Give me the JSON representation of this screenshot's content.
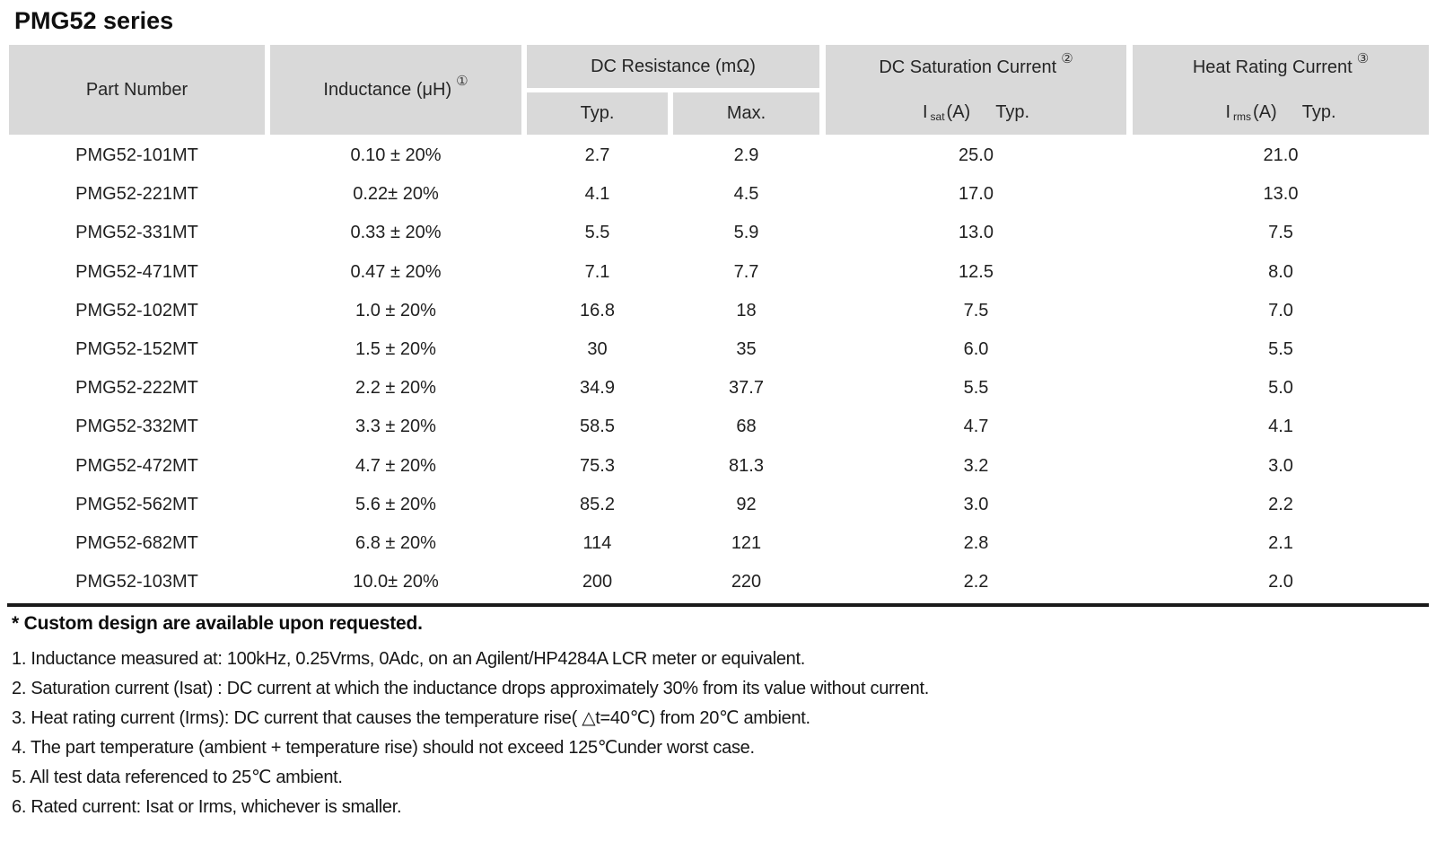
{
  "title": "PMG52 series",
  "colors": {
    "header_bg": "#d9d9d9",
    "rule": "#1a1a1a",
    "text": "#1c1c1c"
  },
  "table": {
    "headers": {
      "part_number": "Part Number",
      "inductance": "Inductance (μH)",
      "inductance_note_ref": "①",
      "dc_resistance": "DC Resistance (mΩ)",
      "typ": "Typ.",
      "max": "Max.",
      "dc_saturation": "DC Saturation Current",
      "dc_saturation_note_ref": "②",
      "isat_symbol": "I",
      "isat_sub": "sat",
      "isat_unit": "(A)",
      "isat_typ": "Typ.",
      "heat_rating": "Heat Rating Current",
      "heat_rating_note_ref": "③",
      "irms_symbol": "I",
      "irms_sub": "rms",
      "irms_unit": "(A)",
      "irms_typ": "Typ."
    },
    "rows": [
      {
        "part": "PMG52-101MT",
        "inductance": "0.10 ± 20%",
        "dcr_typ": "2.7",
        "dcr_max": "2.9",
        "isat": "25.0",
        "irms": "21.0"
      },
      {
        "part": "PMG52-221MT",
        "inductance": "0.22± 20%",
        "dcr_typ": "4.1",
        "dcr_max": "4.5",
        "isat": "17.0",
        "irms": "13.0"
      },
      {
        "part": "PMG52-331MT",
        "inductance": "0.33 ± 20%",
        "dcr_typ": "5.5",
        "dcr_max": "5.9",
        "isat": "13.0",
        "irms": "7.5"
      },
      {
        "part": "PMG52-471MT",
        "inductance": "0.47 ± 20%",
        "dcr_typ": "7.1",
        "dcr_max": "7.7",
        "isat": "12.5",
        "irms": "8.0"
      },
      {
        "part": "PMG52-102MT",
        "inductance": "1.0 ± 20%",
        "dcr_typ": "16.8",
        "dcr_max": "18",
        "isat": "7.5",
        "irms": "7.0"
      },
      {
        "part": "PMG52-152MT",
        "inductance": "1.5 ± 20%",
        "dcr_typ": "30",
        "dcr_max": "35",
        "isat": "6.0",
        "irms": "5.5"
      },
      {
        "part": "PMG52-222MT",
        "inductance": "2.2 ± 20%",
        "dcr_typ": "34.9",
        "dcr_max": "37.7",
        "isat": "5.5",
        "irms": "5.0"
      },
      {
        "part": "PMG52-332MT",
        "inductance": "3.3 ± 20%",
        "dcr_typ": "58.5",
        "dcr_max": "68",
        "isat": "4.7",
        "irms": "4.1"
      },
      {
        "part": "PMG52-472MT",
        "inductance": "4.7 ± 20%",
        "dcr_typ": "75.3",
        "dcr_max": "81.3",
        "isat": "3.2",
        "irms": "3.0"
      },
      {
        "part": "PMG52-562MT",
        "inductance": "5.6 ± 20%",
        "dcr_typ": "85.2",
        "dcr_max": "92",
        "isat": "3.0",
        "irms": "2.2"
      },
      {
        "part": "PMG52-682MT",
        "inductance": "6.8 ± 20%",
        "dcr_typ": "114",
        "dcr_max": "121",
        "isat": "2.8",
        "irms": "2.1"
      },
      {
        "part": "PMG52-103MT",
        "inductance": "10.0± 20%",
        "dcr_typ": "200",
        "dcr_max": "220",
        "isat": "2.2",
        "irms": "2.0"
      }
    ]
  },
  "notes": {
    "custom": "* Custom design are available upon requested.",
    "items": [
      "1. Inductance measured at: 100kHz, 0.25Vrms, 0Adc, on an Agilent/HP4284A LCR meter or equivalent.",
      "2. Saturation current (Isat) : DC current at which the inductance drops approximately 30% from its value without current.",
      "3. Heat rating current (Irms): DC current that causes the temperature rise( △t=40℃) from 20℃ ambient.",
      "4. The part temperature (ambient + temperature rise) should not exceed 125℃under worst case.",
      "5. All test data referenced to 25℃ ambient.",
      "6. Rated current: Isat or Irms, whichever is smaller."
    ]
  }
}
